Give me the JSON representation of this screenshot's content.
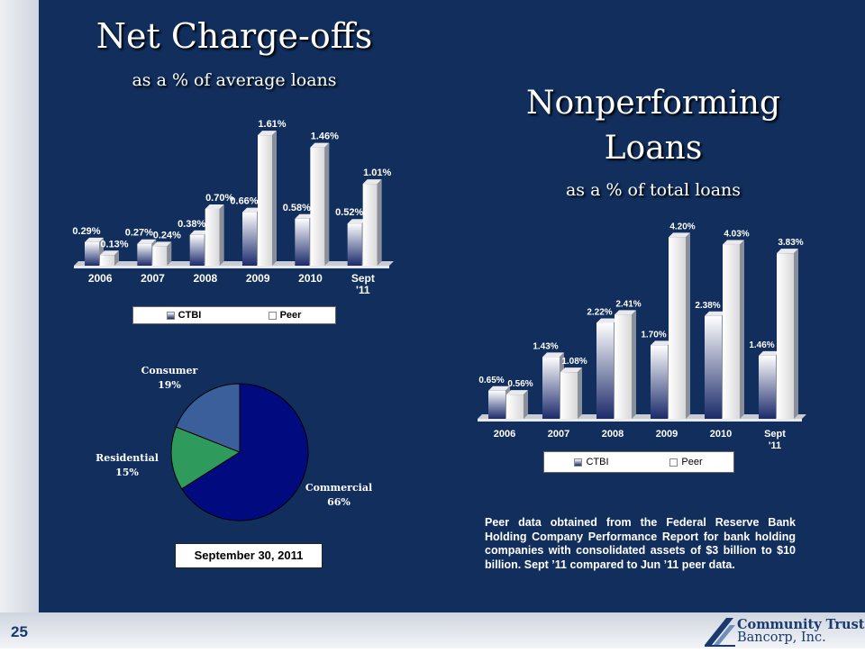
{
  "page_number": "25",
  "logo": {
    "name": "Community Trust",
    "registered": "®",
    "subname": "Bancorp, Inc."
  },
  "note": "Peer data obtained from the Federal Reserve Bank Holding Company Performance Report for bank holding companies with consolidated assets of $3 billion to $10 billion.  Sept ’11 compared to Jun ’11 peer data.",
  "date_label": "September 30, 2011",
  "colors": {
    "panel": "#112e5c",
    "pie_commercial": "#020a80",
    "pie_residential": "#2e9a5c",
    "pie_consumer": "#3a5f9a"
  },
  "chart_data": [
    {
      "id": "net-chargeoffs",
      "type": "bar",
      "title": "Net Charge-offs",
      "subtitle": "as a % of average loans",
      "categories": [
        "2006",
        "2007",
        "2008",
        "2009",
        "2010",
        "Sept '11"
      ],
      "series": [
        {
          "name": "CTBI",
          "values": [
            0.29,
            0.27,
            0.38,
            0.66,
            0.58,
            0.52
          ],
          "labels": [
            "0.29%",
            "0.27%",
            "0.38%",
            "0.66%",
            "0.58%",
            "0.52%"
          ]
        },
        {
          "name": "Peer",
          "values": [
            0.13,
            0.24,
            0.7,
            1.61,
            1.46,
            1.01
          ],
          "labels": [
            "0.13%",
            "0.24%",
            "0.70%",
            "1.61%",
            "1.46%",
            "1.01%"
          ]
        }
      ],
      "legend": "bottom",
      "grid": false
    },
    {
      "id": "nonperforming",
      "type": "bar",
      "title": "Nonperforming Loans",
      "title_lines": [
        "Nonperforming",
        "Loans"
      ],
      "subtitle": "as a % of total loans",
      "categories": [
        "2006",
        "2007",
        "2008",
        "2009",
        "2010",
        "Sept '11"
      ],
      "series": [
        {
          "name": "CTBI",
          "values": [
            0.65,
            1.43,
            2.22,
            1.7,
            2.38,
            1.46
          ],
          "labels": [
            "0.65%",
            "1.43%",
            "2.22%",
            "1.70%",
            "2.38%",
            "1.46%"
          ]
        },
        {
          "name": "Peer",
          "values": [
            0.56,
            1.08,
            2.41,
            4.2,
            4.03,
            3.83
          ],
          "labels": [
            "0.56%",
            "1.08%",
            "2.41%",
            "4.20%",
            "4.03%",
            "3.83%"
          ]
        }
      ],
      "legend": "bottom",
      "grid": false
    },
    {
      "id": "loan-mix",
      "type": "pie",
      "slices": [
        {
          "name": "Commercial",
          "value": 66,
          "label": "66%"
        },
        {
          "name": "Residential",
          "value": 15,
          "label": "15%"
        },
        {
          "name": "Consumer",
          "value": 19,
          "label": "19%"
        }
      ]
    }
  ]
}
